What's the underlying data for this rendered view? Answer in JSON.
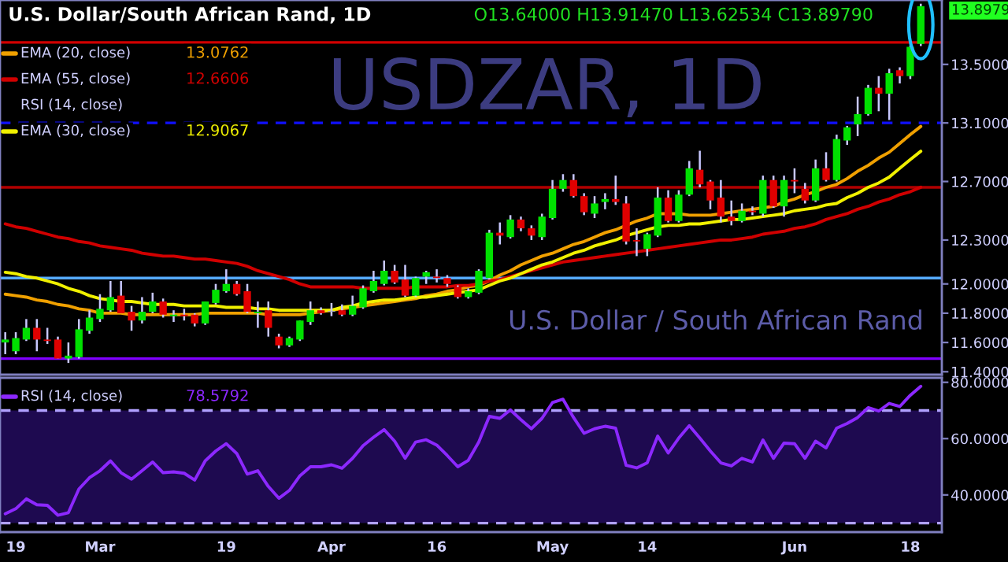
{
  "chart_data": [
    {
      "type": "candlestick",
      "title": "U.S. Dollar/South African Rand, 1D",
      "annotations": [
        "O13.64000 H13.91470 L13.62534 C13.89790",
        "USDZAR, 1D",
        "U.S. Dollar / South African Rand",
        "RSI (14, close)",
        "13.8979",
        "13.0762",
        "12.6606",
        "12.9067"
      ],
      "categories": [
        null,
        null,
        null,
        null,
        null,
        null,
        null,
        null,
        null,
        null,
        null,
        null,
        null,
        null,
        null,
        null,
        null,
        null,
        null,
        null,
        null,
        null,
        null,
        null,
        null,
        null,
        null,
        null,
        null,
        null,
        null,
        null,
        null,
        null,
        null,
        null,
        null,
        null,
        null,
        null,
        null,
        null,
        null,
        null,
        null,
        null,
        null,
        null,
        null,
        null,
        null,
        null,
        null,
        null,
        null,
        null,
        null,
        null,
        null,
        null,
        null,
        null,
        null,
        null,
        null,
        null,
        null,
        null,
        null,
        null,
        null,
        null,
        null,
        null,
        null,
        null,
        null,
        null,
        null,
        null,
        null,
        null,
        null,
        null,
        null,
        null,
        null,
        null
      ],
      "ohlc": [
        [
          11.6,
          11.67,
          11.52,
          11.62
        ],
        [
          11.54,
          11.67,
          11.52,
          11.63
        ],
        [
          11.62,
          11.76,
          11.61,
          11.7
        ],
        [
          11.7,
          11.76,
          11.54,
          11.62
        ],
        [
          11.62,
          11.7,
          11.59,
          11.61
        ],
        [
          11.62,
          11.64,
          11.49,
          11.49
        ],
        [
          11.49,
          11.6,
          11.46,
          11.51
        ],
        [
          11.5,
          11.76,
          11.49,
          11.69
        ],
        [
          11.68,
          11.82,
          11.66,
          11.77
        ],
        [
          11.76,
          11.93,
          11.74,
          11.83
        ],
        [
          11.82,
          12.02,
          11.81,
          11.91
        ],
        [
          11.92,
          12.02,
          11.8,
          11.8
        ],
        [
          11.81,
          11.85,
          11.68,
          11.75
        ],
        [
          11.75,
          11.91,
          11.73,
          11.81
        ],
        [
          11.81,
          11.94,
          11.8,
          11.88
        ],
        [
          11.88,
          11.9,
          11.77,
          11.79
        ],
        [
          11.78,
          11.82,
          11.74,
          11.79
        ],
        [
          11.79,
          11.83,
          11.75,
          11.78
        ],
        [
          11.79,
          11.8,
          11.71,
          11.73
        ],
        [
          11.73,
          11.88,
          11.72,
          11.88
        ],
        [
          11.87,
          12.0,
          11.86,
          11.96
        ],
        [
          11.95,
          12.1,
          11.94,
          12.0
        ],
        [
          12.0,
          12.02,
          11.92,
          11.93
        ],
        [
          11.95,
          12.0,
          11.8,
          11.81
        ],
        [
          11.8,
          11.88,
          11.7,
          11.81
        ],
        [
          11.82,
          11.88,
          11.64,
          11.7
        ],
        [
          11.64,
          11.66,
          11.56,
          11.58
        ],
        [
          11.58,
          11.64,
          11.57,
          11.63
        ],
        [
          11.62,
          11.75,
          11.61,
          11.75
        ],
        [
          11.74,
          11.88,
          11.72,
          11.82
        ],
        [
          11.82,
          11.84,
          11.79,
          11.8
        ],
        [
          11.81,
          11.87,
          11.78,
          11.81
        ],
        [
          11.82,
          11.86,
          11.78,
          11.79
        ],
        [
          11.79,
          11.92,
          11.78,
          11.85
        ],
        [
          11.84,
          11.99,
          11.83,
          11.97
        ],
        [
          11.95,
          12.09,
          11.94,
          12.02
        ],
        [
          12.0,
          12.16,
          11.99,
          12.09
        ],
        [
          12.09,
          12.13,
          12.0,
          12.01
        ],
        [
          12.03,
          12.13,
          11.91,
          11.92
        ],
        [
          11.92,
          12.05,
          11.91,
          12.04
        ],
        [
          12.05,
          12.09,
          12.0,
          12.08
        ],
        [
          12.05,
          12.1,
          12.01,
          12.04
        ],
        [
          12.04,
          12.06,
          11.98,
          12.0
        ],
        [
          11.98,
          11.99,
          11.9,
          11.91
        ],
        [
          11.91,
          11.97,
          11.9,
          11.95
        ],
        [
          11.94,
          12.1,
          11.93,
          12.09
        ],
        [
          12.04,
          12.37,
          12.03,
          12.35
        ],
        [
          12.35,
          12.42,
          12.27,
          12.33
        ],
        [
          12.32,
          12.47,
          12.31,
          12.44
        ],
        [
          12.44,
          12.46,
          12.36,
          12.38
        ],
        [
          12.38,
          12.4,
          12.3,
          12.33
        ],
        [
          12.32,
          12.48,
          12.3,
          12.46
        ],
        [
          12.45,
          12.71,
          12.44,
          12.65
        ],
        [
          12.65,
          12.75,
          12.63,
          12.71
        ],
        [
          12.71,
          12.75,
          12.59,
          12.6
        ],
        [
          12.6,
          12.62,
          12.47,
          12.49
        ],
        [
          12.48,
          12.6,
          12.45,
          12.55
        ],
        [
          12.56,
          12.62,
          12.51,
          12.58
        ],
        [
          12.58,
          12.74,
          12.54,
          12.56
        ],
        [
          12.55,
          12.6,
          12.27,
          12.29
        ],
        [
          12.3,
          12.38,
          12.19,
          12.29
        ],
        [
          12.24,
          12.35,
          12.19,
          12.34
        ],
        [
          12.33,
          12.66,
          12.32,
          12.59
        ],
        [
          12.59,
          12.64,
          12.42,
          12.43
        ],
        [
          12.43,
          12.64,
          12.42,
          12.61
        ],
        [
          12.61,
          12.84,
          12.6,
          12.79
        ],
        [
          12.78,
          12.91,
          12.66,
          12.68
        ],
        [
          12.7,
          12.71,
          12.51,
          12.57
        ],
        [
          12.59,
          12.71,
          12.42,
          12.46
        ],
        [
          12.46,
          12.57,
          12.4,
          12.43
        ],
        [
          12.43,
          12.55,
          12.42,
          12.5
        ],
        [
          12.5,
          12.53,
          12.47,
          12.49
        ],
        [
          12.48,
          12.74,
          12.46,
          12.71
        ],
        [
          12.71,
          12.74,
          12.52,
          12.53
        ],
        [
          12.53,
          12.74,
          12.46,
          12.71
        ],
        [
          12.71,
          12.79,
          12.62,
          12.7
        ],
        [
          12.65,
          12.69,
          12.55,
          12.57
        ],
        [
          12.57,
          12.85,
          12.56,
          12.79
        ],
        [
          12.79,
          12.9,
          12.7,
          12.71
        ],
        [
          12.71,
          13.02,
          12.7,
          12.99
        ],
        [
          12.98,
          13.08,
          12.95,
          13.07
        ],
        [
          13.09,
          13.28,
          13.01,
          13.16
        ],
        [
          13.16,
          13.36,
          13.15,
          13.34
        ],
        [
          13.34,
          13.42,
          13.18,
          13.3
        ],
        [
          13.3,
          13.47,
          13.12,
          13.44
        ],
        [
          13.46,
          13.48,
          13.37,
          13.42
        ],
        [
          13.42,
          13.63,
          13.4,
          13.62
        ],
        [
          13.64,
          13.9147,
          13.62534,
          13.8979
        ]
      ],
      "series": [
        {
          "name": "EMA (20, close)",
          "type": "line",
          "color": "#f0a000",
          "values": [
            11.93,
            11.92,
            11.91,
            11.89,
            11.88,
            11.86,
            11.85,
            11.83,
            11.82,
            11.8,
            11.8,
            11.8,
            11.79,
            11.79,
            11.79,
            11.79,
            11.79,
            11.79,
            11.79,
            11.8,
            11.8,
            11.8,
            11.8,
            11.8,
            11.8,
            11.79,
            11.79,
            11.79,
            11.79,
            11.8,
            11.81,
            11.82,
            11.83,
            11.84,
            11.85,
            11.86,
            11.87,
            11.88,
            11.89,
            11.9,
            11.92,
            11.93,
            11.95,
            11.96,
            11.98,
            11.99,
            12.02,
            12.06,
            12.09,
            12.13,
            12.16,
            12.19,
            12.21,
            12.24,
            12.27,
            12.29,
            12.32,
            12.35,
            12.37,
            12.4,
            12.43,
            12.45,
            12.48,
            12.48,
            12.48,
            12.47,
            12.47,
            12.47,
            12.48,
            12.49,
            12.5,
            12.51,
            12.52,
            12.53,
            12.56,
            12.58,
            12.61,
            12.63,
            12.66,
            12.68,
            12.72,
            12.77,
            12.81,
            12.86,
            12.9,
            12.96,
            13.02,
            13.0762
          ]
        },
        {
          "name": "EMA (55, close)",
          "type": "line",
          "color": "#d00000",
          "values": [
            12.41,
            12.39,
            12.38,
            12.36,
            12.34,
            12.32,
            12.31,
            12.29,
            12.28,
            12.26,
            12.25,
            12.24,
            12.23,
            12.21,
            12.2,
            12.19,
            12.19,
            12.18,
            12.17,
            12.17,
            12.16,
            12.15,
            12.14,
            12.12,
            12.09,
            12.07,
            12.05,
            12.03,
            12.0,
            11.98,
            11.98,
            11.98,
            11.98,
            11.98,
            11.97,
            11.97,
            11.97,
            11.97,
            11.97,
            11.98,
            11.98,
            11.98,
            11.98,
            11.99,
            11.99,
            12.0,
            12.02,
            12.03,
            12.05,
            12.07,
            12.09,
            12.11,
            12.13,
            12.15,
            12.16,
            12.17,
            12.18,
            12.19,
            12.2,
            12.21,
            12.22,
            12.23,
            12.24,
            12.25,
            12.26,
            12.27,
            12.28,
            12.29,
            12.3,
            12.3,
            12.31,
            12.32,
            12.34,
            12.35,
            12.36,
            12.38,
            12.39,
            12.41,
            12.44,
            12.46,
            12.48,
            12.51,
            12.53,
            12.56,
            12.58,
            12.61,
            12.63,
            12.6606
          ]
        },
        {
          "name": "EMA (30, close)",
          "type": "line",
          "color": "#f0f000",
          "values": [
            12.08,
            12.07,
            12.05,
            12.04,
            12.02,
            12.0,
            11.97,
            11.95,
            11.92,
            11.9,
            11.89,
            11.88,
            11.88,
            11.87,
            11.86,
            11.86,
            11.86,
            11.85,
            11.85,
            11.85,
            11.85,
            11.84,
            11.84,
            11.84,
            11.83,
            11.83,
            11.82,
            11.82,
            11.82,
            11.82,
            11.82,
            11.82,
            11.84,
            11.85,
            11.87,
            11.88,
            11.89,
            11.89,
            11.9,
            11.91,
            11.91,
            11.92,
            11.93,
            11.94,
            11.95,
            11.96,
            11.99,
            12.02,
            12.04,
            12.07,
            12.1,
            12.13,
            12.15,
            12.18,
            12.21,
            12.23,
            12.26,
            12.28,
            12.3,
            12.33,
            12.35,
            12.37,
            12.39,
            12.4,
            12.4,
            12.41,
            12.41,
            12.42,
            12.43,
            12.44,
            12.44,
            12.45,
            12.46,
            12.47,
            12.48,
            12.5,
            12.51,
            12.52,
            12.54,
            12.55,
            12.59,
            12.62,
            12.66,
            12.69,
            12.73,
            12.79,
            12.85,
            12.9067
          ]
        }
      ],
      "ref_lines": [
        {
          "axis": "y",
          "value": 13.65,
          "color": "#d00000",
          "line_style": "solid"
        },
        {
          "axis": "y",
          "value": 13.1,
          "color": "#1010ff",
          "line_style": "dashed"
        },
        {
          "axis": "y",
          "value": 12.66,
          "color": "#b00000",
          "line_style": "solid"
        },
        {
          "axis": "y",
          "value": 12.04,
          "color": "#55aaff",
          "line_style": "solid"
        },
        {
          "axis": "y",
          "value": 11.49,
          "color": "#8000ff",
          "line_style": "solid"
        }
      ],
      "ylim": [
        11.38,
        13.94
      ],
      "yticks": [
        {
          "value": 11.4,
          "label": "11.4000"
        },
        {
          "value": 11.6,
          "label": "11.6000"
        },
        {
          "value": 11.8,
          "label": "11.8000"
        },
        {
          "value": 12.0,
          "label": "12.0000"
        },
        {
          "value": 12.3,
          "label": "12.3000"
        },
        {
          "value": 12.7,
          "label": "12.7000"
        },
        {
          "value": 13.1,
          "label": "13.1000"
        },
        {
          "value": 13.5,
          "label": "13.5000"
        }
      ],
      "tick_labels": "y",
      "legend": "top left",
      "grid": false
    },
    {
      "type": "line",
      "annotations": [
        "78.5792"
      ],
      "categories": [
        null,
        "19",
        null,
        null,
        null,
        null,
        null,
        null,
        null,
        "Mar",
        null,
        null,
        null,
        null,
        null,
        null,
        null,
        null,
        null,
        null,
        null,
        "19",
        null,
        null,
        null,
        null,
        null,
        null,
        null,
        null,
        null,
        "Apr",
        null,
        null,
        null,
        null,
        null,
        null,
        null,
        null,
        null,
        "16",
        null,
        null,
        null,
        null,
        null,
        null,
        null,
        null,
        null,
        null,
        "May",
        null,
        null,
        null,
        null,
        null,
        null,
        null,
        null,
        "14",
        null,
        null,
        null,
        null,
        null,
        null,
        null,
        null,
        null,
        null,
        null,
        null,
        null,
        "Jun",
        null,
        null,
        null,
        null,
        null,
        null,
        null,
        null,
        null,
        null,
        "18",
        null
      ],
      "series": [
        {
          "name": "RSI (14, close)",
          "color": "#8c28ff",
          "values": [
            33.3,
            35.1,
            38.6,
            36.5,
            36.3,
            32.8,
            33.7,
            42.1,
            46.1,
            48.6,
            52.1,
            47.9,
            45.6,
            48.6,
            51.7,
            47.9,
            48.2,
            47.7,
            45.3,
            52.1,
            55.6,
            58.2,
            54.7,
            47.4,
            48.6,
            43.0,
            38.8,
            41.6,
            46.8,
            50.0,
            50.0,
            50.7,
            49.5,
            53.0,
            57.5,
            60.5,
            63.2,
            59.1,
            53.0,
            58.8,
            59.6,
            57.7,
            54.0,
            50.0,
            52.3,
            58.8,
            67.9,
            67.2,
            70.2,
            66.7,
            63.5,
            67.2,
            72.8,
            74.0,
            67.5,
            61.9,
            63.5,
            64.4,
            63.7,
            50.5,
            49.6,
            51.4,
            60.9,
            54.9,
            60.2,
            64.6,
            60.2,
            55.6,
            51.4,
            50.3,
            53.0,
            51.7,
            59.5,
            53.0,
            58.4,
            58.2,
            53.0,
            59.1,
            56.7,
            63.7,
            65.4,
            67.5,
            71.0,
            69.8,
            72.5,
            71.4,
            75.4,
            78.5792
          ]
        }
      ],
      "ref_lines": [
        {
          "axis": "y",
          "value": 70,
          "color": "#b0a0ff",
          "line_style": "dashed"
        },
        {
          "axis": "y",
          "value": 30,
          "color": "#b0a0ff",
          "line_style": "dashed"
        }
      ],
      "bands": [
        {
          "axis": "y",
          "from": 30,
          "to": 70,
          "color": "#1e0a50"
        }
      ],
      "ylim": [
        26.8,
        81.6
      ],
      "yticks": [
        {
          "value": 40,
          "label": "40.0000"
        },
        {
          "value": 60,
          "label": "60.0000"
        },
        {
          "value": 80,
          "label": "80.0000"
        }
      ],
      "legend": "top left",
      "grid": false
    }
  ]
}
